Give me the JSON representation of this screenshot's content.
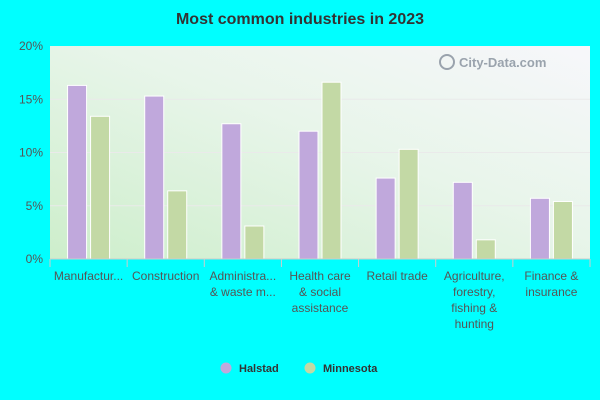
{
  "chart_data": {
    "type": "bar",
    "title": "Most common industries in 2023",
    "xlabel": "",
    "ylabel": "",
    "ylim": [
      0,
      20
    ],
    "yticks": [
      "0%",
      "5%",
      "10%",
      "15%",
      "20%"
    ],
    "categories": [
      [
        "Manufactur..."
      ],
      [
        "Construction"
      ],
      [
        "Administra...",
        "& waste m..."
      ],
      [
        "Health care",
        "& social",
        "assistance"
      ],
      [
        "Retail trade"
      ],
      [
        "Agriculture,",
        "forestry,",
        "fishing &",
        "hunting"
      ],
      [
        "Finance &",
        "insurance"
      ]
    ],
    "series": [
      {
        "name": "Halstad",
        "color": "#c0a8dc",
        "values": [
          16.3,
          15.3,
          12.7,
          12.0,
          7.6,
          7.2,
          5.7
        ]
      },
      {
        "name": "Minnesota",
        "color": "#c3d9a5",
        "values": [
          13.4,
          6.4,
          3.1,
          16.6,
          10.3,
          1.8,
          5.4
        ]
      }
    ],
    "legend_position": "bottom",
    "grid": true
  },
  "watermark": "City-Data.com"
}
